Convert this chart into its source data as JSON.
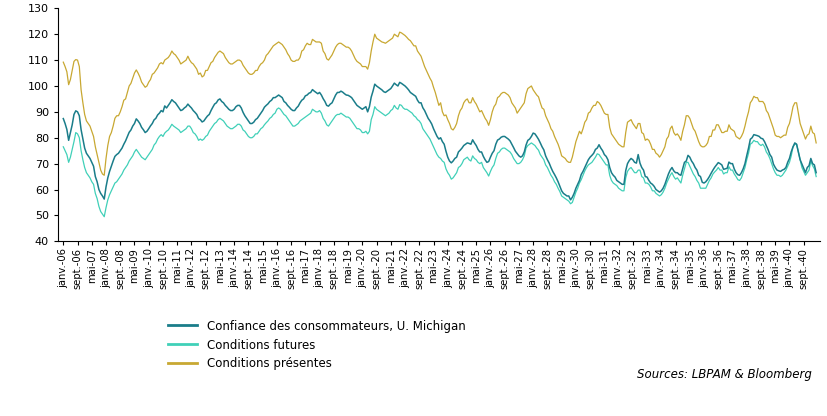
{
  "ylim": [
    40,
    130
  ],
  "yticks": [
    40,
    50,
    60,
    70,
    80,
    90,
    100,
    110,
    120,
    130
  ],
  "line_colors": {
    "overall": "#1a7d8a",
    "future": "#40d0b8",
    "current": "#c8a832"
  },
  "legend_labels": [
    "Confiance des consommateurs, U. Michigan",
    "Conditions futures",
    "Conditions présentes"
  ],
  "source_text": "Sources: LBPAM & Bloomberg",
  "tick_labels": [
    "janv.-06",
    "sept.-06",
    "mai-07",
    "janv.-08",
    "sept.-08",
    "mai-09",
    "janv.-10",
    "sept.-10",
    "mai-11",
    "janv.-12",
    "sept.-12",
    "mai-13",
    "janv.-14",
    "sept.-14",
    "mai-15",
    "janv.-16",
    "sept.-16",
    "mai-17",
    "janv.-18",
    "sept.-18",
    "mai-19",
    "janv.-20",
    "sept.-20",
    "mai-21",
    "janv.-22",
    "sept.-22",
    "mai-23",
    "janv.-24",
    "sept.-24"
  ],
  "overall_data": [
    87.4,
    85.5,
    83.2,
    79.0,
    82.0,
    85.0,
    89.0,
    90.4,
    90.0,
    88.5,
    83.1,
    79.5,
    76.0,
    74.0,
    73.0,
    72.0,
    70.5,
    69.0,
    65.0,
    63.0,
    60.0,
    58.5,
    57.5,
    56.3,
    61.0,
    64.5,
    67.0,
    69.0,
    71.0,
    72.8,
    73.5,
    74.0,
    75.0,
    76.0,
    77.5,
    78.8,
    80.5,
    82.1,
    83.0,
    84.5,
    85.5,
    87.3,
    86.5,
    85.5,
    84.0,
    83.1,
    82.0,
    82.5,
    83.5,
    84.6,
    85.5,
    86.9,
    87.5,
    88.8,
    89.5,
    90.5,
    90.0,
    92.3,
    91.5,
    92.5,
    93.5,
    94.7,
    94.0,
    93.5,
    92.5,
    91.5,
    90.5,
    90.8,
    91.5,
    92.0,
    93.0,
    92.2,
    91.5,
    90.5,
    89.8,
    89.0,
    87.5,
    87.0,
    86.1,
    86.5,
    87.5,
    88.4,
    89.0,
    90.5,
    91.8,
    93.0,
    93.5,
    94.6,
    95.0,
    94.0,
    93.5,
    92.5,
    91.8,
    91.0,
    90.5,
    90.5,
    91.0,
    92.0,
    92.5,
    92.5,
    91.5,
    89.8,
    88.5,
    87.5,
    86.5,
    85.5,
    85.5,
    86.0,
    87.0,
    87.5,
    88.5,
    89.5,
    90.5,
    91.8,
    92.5,
    93.1,
    94.0,
    94.5,
    95.5,
    95.5,
    96.0,
    96.5,
    96.0,
    95.5,
    94.0,
    93.5,
    92.5,
    91.8,
    91.0,
    90.5,
    90.5,
    91.5,
    92.2,
    93.5,
    94.5,
    95.0,
    96.2,
    96.5,
    97.2,
    97.5,
    98.6,
    98.0,
    97.5,
    97.0,
    97.5,
    96.5,
    95.1,
    94.0,
    92.5,
    92.2,
    93.0,
    93.5,
    95.0,
    96.5,
    97.5,
    97.5,
    98.0,
    97.6,
    97.0,
    96.5,
    96.4,
    96.0,
    95.5,
    94.5,
    93.5,
    92.5,
    92.0,
    91.5,
    91.0,
    91.5,
    92.0,
    90.0,
    92.0,
    95.7,
    98.0,
    100.7,
    100.0,
    99.5,
    99.0,
    98.5,
    97.8,
    97.5,
    98.0,
    98.5,
    99.0,
    100.0,
    101.1,
    100.5,
    100.0,
    101.4,
    101.0,
    100.5,
    100.0,
    99.3,
    98.5,
    97.5,
    97.0,
    96.5,
    96.0,
    94.5,
    93.5,
    93.5,
    91.6,
    90.5,
    89.0,
    87.5,
    86.5,
    85.3,
    83.5,
    82.0,
    80.5,
    79.5,
    80.0,
    78.5,
    77.5,
    74.8,
    72.5,
    71.0,
    70.3,
    71.0,
    72.0,
    72.5,
    74.5,
    75.2,
    76.0,
    77.0,
    77.5,
    78.0,
    77.8,
    77.5,
    79.2,
    78.0,
    77.0,
    75.5,
    74.5,
    74.5,
    72.8,
    71.5,
    70.5,
    70.8,
    72.5,
    74.0,
    75.0,
    77.5,
    79.1,
    79.5,
    80.2,
    80.5,
    80.5,
    80.0,
    79.5,
    78.8,
    77.5,
    76.2,
    74.8,
    73.9,
    73.0,
    72.5,
    73.0,
    74.5,
    77.2,
    79.0,
    79.5,
    80.5,
    81.8,
    81.5,
    80.5,
    79.4,
    78.0,
    76.5,
    75.3,
    73.0,
    71.5,
    70.2,
    68.5,
    67.0,
    65.8,
    64.5,
    63.0,
    61.2,
    59.5,
    58.5,
    58.0,
    57.5,
    57.5,
    56.0,
    57.0,
    58.5,
    60.5,
    62.0,
    63.5,
    65.8,
    67.0,
    68.5,
    70.1,
    71.5,
    72.5,
    73.2,
    74.0,
    75.5,
    76.0,
    77.3,
    76.0,
    75.0,
    73.5,
    72.8,
    71.5,
    68.5,
    66.5,
    65.5,
    64.8,
    63.5,
    63.0,
    62.5,
    62.0,
    62.0,
    67.3,
    70.0,
    71.2,
    72.0,
    71.5,
    70.5,
    70.2,
    73.5,
    70.2,
    68.5,
    67.5,
    65.0,
    64.8,
    63.5,
    62.5,
    62.0,
    61.2,
    60.0,
    59.5,
    59.0,
    59.5,
    60.5,
    62.0,
    64.0,
    66.0,
    67.5,
    68.5,
    67.2,
    66.5,
    66.5,
    65.8,
    65.5,
    68.0,
    70.5,
    71.0,
    73.2,
    72.5,
    71.0,
    70.0,
    68.5,
    67.5,
    65.5,
    65.0,
    62.8,
    62.5,
    63.0,
    63.9,
    65.0,
    66.3,
    67.5,
    68.6,
    69.5,
    70.4,
    70.0,
    69.5,
    67.8,
    68.0,
    68.2,
    70.6,
    70.0,
    70.0,
    67.9,
    66.5,
    65.7,
    65.5,
    66.5,
    68.0,
    70.0,
    73.1,
    76.0,
    79.4,
    80.0,
    81.2,
    81.0,
    80.8,
    80.5,
    79.8,
    79.6,
    78.5,
    77.0,
    75.4,
    73.5,
    72.5,
    69.8,
    68.5,
    67.5,
    67.2,
    67.0,
    67.5,
    67.8,
    68.5,
    70.5,
    72.0,
    74.6,
    76.5,
    78.0,
    77.5,
    74.5,
    71.5,
    69.8,
    68.0,
    66.5,
    68.5,
    69.2,
    72.0,
    70.0,
    69.5,
    66.5
  ],
  "future_data": [
    76.5,
    75.0,
    73.5,
    70.5,
    72.5,
    75.5,
    78.5,
    82.0,
    81.5,
    80.0,
    75.0,
    71.5,
    68.5,
    66.5,
    65.5,
    64.5,
    63.0,
    62.0,
    58.5,
    56.5,
    53.5,
    51.5,
    50.5,
    49.5,
    53.0,
    56.0,
    58.0,
    59.5,
    61.0,
    62.5,
    63.0,
    64.0,
    65.0,
    66.0,
    67.5,
    68.5,
    69.5,
    71.0,
    72.0,
    73.0,
    74.5,
    75.5,
    74.5,
    73.5,
    72.5,
    72.0,
    71.5,
    72.5,
    73.5,
    74.5,
    75.5,
    77.2,
    78.0,
    79.5,
    80.5,
    81.2,
    80.5,
    81.8,
    82.5,
    83.0,
    84.0,
    85.2,
    84.5,
    84.0,
    83.5,
    83.0,
    82.0,
    82.5,
    83.0,
    83.5,
    84.5,
    84.5,
    83.5,
    82.0,
    81.5,
    80.5,
    79.0,
    79.5,
    79.0,
    79.5,
    80.5,
    81.0,
    82.5,
    83.5,
    84.5,
    85.5,
    86.0,
    87.0,
    87.5,
    87.0,
    86.5,
    85.5,
    84.5,
    84.0,
    83.5,
    83.5,
    84.0,
    84.5,
    85.2,
    85.2,
    84.5,
    83.0,
    82.5,
    81.5,
    80.5,
    80.0,
    80.0,
    80.5,
    81.5,
    81.5,
    82.5,
    83.5,
    84.0,
    85.0,
    85.8,
    86.5,
    87.5,
    88.0,
    89.0,
    89.5,
    91.0,
    91.5,
    91.0,
    90.0,
    89.0,
    88.5,
    87.5,
    86.5,
    85.5,
    84.5,
    84.5,
    85.0,
    85.5,
    86.5,
    87.0,
    87.5,
    88.0,
    88.5,
    89.0,
    89.5,
    91.0,
    90.5,
    90.0,
    90.0,
    90.5,
    89.5,
    87.5,
    86.5,
    85.0,
    84.5,
    85.5,
    86.5,
    87.5,
    88.5,
    89.0,
    89.0,
    89.5,
    89.0,
    88.5,
    88.0,
    88.0,
    87.5,
    86.5,
    85.5,
    84.5,
    83.5,
    83.5,
    83.0,
    82.0,
    82.0,
    82.5,
    81.5,
    82.5,
    87.0,
    89.0,
    92.0,
    91.0,
    90.5,
    90.0,
    89.5,
    89.0,
    88.5,
    89.0,
    89.5,
    90.5,
    91.0,
    92.5,
    91.5,
    91.0,
    92.8,
    92.5,
    91.5,
    91.0,
    91.0,
    90.5,
    90.0,
    89.5,
    88.5,
    88.0,
    87.0,
    86.5,
    85.5,
    83.5,
    82.5,
    81.5,
    80.5,
    79.5,
    78.0,
    76.5,
    75.0,
    73.5,
    72.5,
    72.0,
    71.0,
    70.5,
    68.0,
    66.5,
    65.5,
    64.0,
    64.5,
    65.5,
    66.5,
    68.5,
    69.0,
    70.0,
    71.5,
    72.0,
    72.5,
    71.5,
    71.0,
    73.0,
    72.0,
    71.5,
    70.5,
    70.0,
    70.5,
    68.5,
    67.5,
    66.5,
    65.2,
    67.0,
    68.5,
    69.5,
    72.0,
    74.0,
    74.5,
    75.5,
    76.0,
    76.0,
    75.5,
    75.0,
    74.5,
    73.5,
    72.0,
    71.0,
    70.0,
    70.0,
    70.5,
    71.5,
    73.0,
    76.0,
    77.0,
    77.5,
    78.0,
    77.5,
    77.0,
    76.0,
    75.2,
    73.5,
    72.5,
    71.5,
    69.5,
    68.5,
    67.0,
    65.5,
    64.5,
    63.0,
    62.0,
    60.5,
    59.2,
    57.5,
    57.0,
    56.5,
    56.0,
    55.5,
    54.5,
    55.0,
    57.0,
    59.0,
    60.5,
    62.5,
    63.8,
    65.5,
    67.2,
    68.5,
    69.5,
    70.0,
    70.5,
    71.5,
    72.5,
    73.8,
    73.5,
    72.5,
    71.5,
    70.5,
    69.5,
    69.5,
    65.5,
    63.5,
    62.5,
    62.0,
    61.5,
    60.5,
    60.0,
    59.5,
    59.5,
    64.5,
    67.0,
    68.0,
    68.5,
    67.5,
    66.5,
    66.5,
    67.5,
    67.5,
    65.0,
    64.5,
    62.5,
    62.5,
    62.0,
    61.0,
    59.5,
    59.5,
    58.5,
    58.0,
    57.5,
    58.0,
    59.0,
    60.5,
    62.5,
    64.0,
    65.5,
    66.5,
    65.0,
    64.0,
    64.5,
    63.5,
    62.5,
    65.5,
    68.0,
    70.5,
    70.5,
    69.0,
    67.5,
    66.0,
    65.0,
    63.5,
    62.5,
    60.5,
    60.5,
    60.5,
    60.5,
    62.0,
    63.5,
    64.5,
    66.0,
    66.8,
    67.5,
    68.5,
    67.5,
    67.5,
    66.0,
    66.5,
    66.5,
    68.8,
    67.5,
    67.5,
    66.0,
    65.0,
    63.8,
    63.5,
    64.5,
    66.5,
    68.5,
    71.5,
    74.0,
    77.5,
    78.0,
    79.0,
    78.5,
    78.5,
    77.5,
    77.0,
    77.5,
    76.5,
    74.5,
    73.5,
    72.0,
    70.0,
    68.0,
    66.5,
    65.5,
    65.5,
    65.0,
    65.5,
    66.5,
    67.5,
    69.0,
    70.5,
    73.0,
    76.5,
    77.5,
    77.5,
    74.5,
    71.5,
    68.5,
    67.0,
    65.5,
    66.5,
    67.5,
    71.0,
    69.2,
    68.0,
    65.0
  ],
  "current_data": [
    109.2,
    107.5,
    105.5,
    100.5,
    102.5,
    106.0,
    109.5,
    110.2,
    110.0,
    107.5,
    98.5,
    93.5,
    89.0,
    86.5,
    85.5,
    84.5,
    82.5,
    80.5,
    76.5,
    73.5,
    70.5,
    67.5,
    66.0,
    65.5,
    72.0,
    77.0,
    80.5,
    82.0,
    84.5,
    87.5,
    88.5,
    88.5,
    90.0,
    92.0,
    94.5,
    95.0,
    97.5,
    100.0,
    101.0,
    103.0,
    105.0,
    106.2,
    105.0,
    103.5,
    101.5,
    100.5,
    99.5,
    100.0,
    101.5,
    102.5,
    104.5,
    105.0,
    106.0,
    107.0,
    108.5,
    109.0,
    108.5,
    110.0,
    110.5,
    111.0,
    112.0,
    113.5,
    112.5,
    112.0,
    111.0,
    110.0,
    108.5,
    109.0,
    109.5,
    110.0,
    111.5,
    110.0,
    109.0,
    108.5,
    107.5,
    106.5,
    104.5,
    105.0,
    103.5,
    104.0,
    106.0,
    106.0,
    107.5,
    109.0,
    109.5,
    111.0,
    112.0,
    113.0,
    113.5,
    113.0,
    112.5,
    111.0,
    110.0,
    109.0,
    108.5,
    108.5,
    109.0,
    109.5,
    110.0,
    110.0,
    109.5,
    108.0,
    107.0,
    106.0,
    105.0,
    104.5,
    104.5,
    105.0,
    106.0,
    106.0,
    107.5,
    108.5,
    109.0,
    110.0,
    111.8,
    112.5,
    113.5,
    114.5,
    115.5,
    116.0,
    116.5,
    117.0,
    116.5,
    116.0,
    115.0,
    114.0,
    112.5,
    111.5,
    110.0,
    109.5,
    109.5,
    110.0,
    110.0,
    111.0,
    113.5,
    114.0,
    115.5,
    116.5,
    116.0,
    116.0,
    118.0,
    117.5,
    117.0,
    117.0,
    117.0,
    116.5,
    113.5,
    112.5,
    110.5,
    110.0,
    111.0,
    112.0,
    113.5,
    115.0,
    116.0,
    116.5,
    116.5,
    116.0,
    115.5,
    115.0,
    115.0,
    114.5,
    113.5,
    112.0,
    110.5,
    109.5,
    109.0,
    108.5,
    107.5,
    107.5,
    107.5,
    106.5,
    109.0,
    113.5,
    117.0,
    120.0,
    118.5,
    118.0,
    117.5,
    117.0,
    116.8,
    116.5,
    117.0,
    117.5,
    118.0,
    118.5,
    120.0,
    119.5,
    119.0,
    120.8,
    120.5,
    120.0,
    119.5,
    118.8,
    118.0,
    117.5,
    116.5,
    115.5,
    115.5,
    113.5,
    112.5,
    111.5,
    109.5,
    107.5,
    106.0,
    104.5,
    103.0,
    101.8,
    99.5,
    97.5,
    95.0,
    92.5,
    93.5,
    90.0,
    88.5,
    88.8,
    87.0,
    85.5,
    83.5,
    83.0,
    84.0,
    85.5,
    88.5,
    90.5,
    91.5,
    93.5,
    94.5,
    95.0,
    93.5,
    93.5,
    95.5,
    94.0,
    93.0,
    91.5,
    90.0,
    90.5,
    89.0,
    87.5,
    86.5,
    84.8,
    87.0,
    90.0,
    92.0,
    93.0,
    95.5,
    96.0,
    97.0,
    97.5,
    97.5,
    97.0,
    96.5,
    95.5,
    93.5,
    92.5,
    91.5,
    89.5,
    90.5,
    91.5,
    92.5,
    93.5,
    97.0,
    99.0,
    99.5,
    100.0,
    98.5,
    97.5,
    96.5,
    95.8,
    93.5,
    91.5,
    91.0,
    88.5,
    87.0,
    85.5,
    83.5,
    82.5,
    80.5,
    79.0,
    77.5,
    75.5,
    73.0,
    72.5,
    72.0,
    71.0,
    70.5,
    70.5,
    72.5,
    75.5,
    78.5,
    80.5,
    82.5,
    81.5,
    83.5,
    86.0,
    87.0,
    89.5,
    90.0,
    91.5,
    92.5,
    92.5,
    94.0,
    93.5,
    92.5,
    91.0,
    89.5,
    89.0,
    89.0,
    84.0,
    81.5,
    80.5,
    79.5,
    78.5,
    77.5,
    77.0,
    76.5,
    76.5,
    82.0,
    86.0,
    86.5,
    87.0,
    85.5,
    84.5,
    83.5,
    85.5,
    85.5,
    82.0,
    81.5,
    79.0,
    79.5,
    79.0,
    77.5,
    75.5,
    75.5,
    74.0,
    73.5,
    72.5,
    73.5,
    75.0,
    76.5,
    79.5,
    80.5,
    83.5,
    84.5,
    82.0,
    81.0,
    81.5,
    80.5,
    79.0,
    82.5,
    85.0,
    88.5,
    88.5,
    87.5,
    85.5,
    83.5,
    82.5,
    80.5,
    78.5,
    77.0,
    76.5,
    76.5,
    77.0,
    78.0,
    80.5,
    80.5,
    83.0,
    83.0,
    85.0,
    85.0,
    83.5,
    82.0,
    82.0,
    82.5,
    82.5,
    85.0,
    83.5,
    83.0,
    82.5,
    80.5,
    80.0,
    79.5,
    80.5,
    82.0,
    84.5,
    87.5,
    90.0,
    93.5,
    94.5,
    96.0,
    95.5,
    95.5,
    94.0,
    94.0,
    94.0,
    93.0,
    90.5,
    89.5,
    87.5,
    85.5,
    83.5,
    81.0,
    80.5,
    80.5,
    80.0,
    80.5,
    81.0,
    81.0,
    84.0,
    85.5,
    88.5,
    92.0,
    93.5,
    93.5,
    89.5,
    85.5,
    83.5,
    81.5,
    79.5,
    81.0,
    81.5,
    84.5,
    82.0,
    81.5,
    78.0
  ]
}
